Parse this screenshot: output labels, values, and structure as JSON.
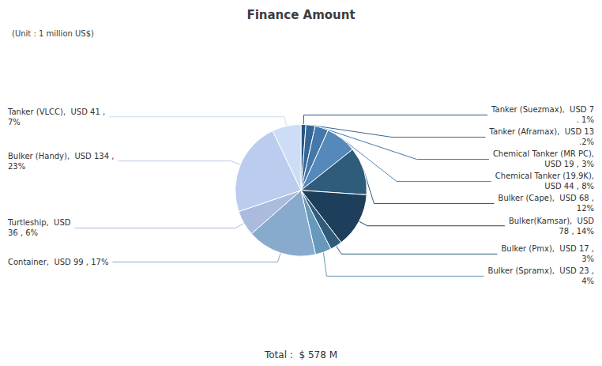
{
  "chart_data": {
    "type": "pie",
    "title": "Finance Amount",
    "subtitle": "(Unit : 1 million US$)",
    "categories": [
      "Tanker (Suezmax),  USD 7\n. 1%",
      "Tanker (Aframax),  USD 13\n.2%",
      "Chemical Tanker (MR PC),\nUSD 19 , 3%",
      "Chemical Tanker (19.9K),\nUSD 44 , 8%",
      "Bulker (Cape),  USD 68 ,\n12%",
      "Bulker(Kamsar),  USD\n78 , 14%",
      "Bulker (Pmx),  USD 17 ,\n3%",
      "Bulker (Spramx),  USD 23 ,\n4%",
      "Container,  USD 99 , 17%",
      "Turtleship,  USD\n36 , 6%",
      "Bulker (Handy),  USD 134 ,\n23%",
      "Tanker (VLCC),  USD 41 ,\n7%"
    ],
    "values": [
      7,
      13,
      19,
      44,
      68,
      78,
      17,
      23,
      99,
      36,
      134,
      41
    ],
    "colors": [
      "#2a5580",
      "#336699",
      "#4477aa",
      "#5588bb",
      "#2e5c7a",
      "#1e3f5c",
      "#2e5c7a",
      "#6699bb",
      "#88aacc",
      "#aabbdd",
      "#bbccee",
      "#ccddf5"
    ],
    "annotations": [
      "Total :  $",
      "578",
      "M"
    ],
    "legend": false
  }
}
